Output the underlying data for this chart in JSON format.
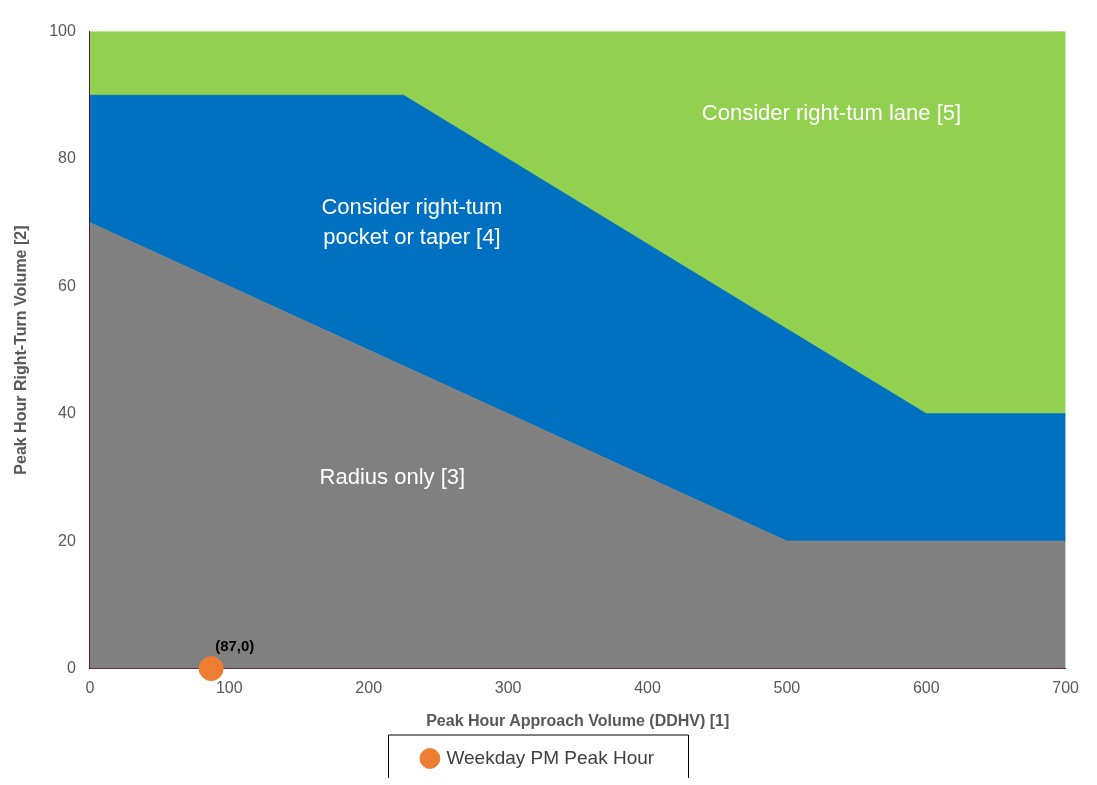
{
  "chart_data": {
    "type": "area",
    "xlabel": "Peak Hour Approach Volume (DDHV) [1]",
    "ylabel": "Peak Hour Right-Turn Volume [2]",
    "x": [
      0,
      225,
      500,
      600,
      700
    ],
    "stacked": true,
    "series": [
      {
        "name": "Radius only [3]",
        "color": "#808080",
        "values": [
          70,
          47.5,
          20,
          20,
          20
        ]
      },
      {
        "name": "Consider right-tum pocket or taper [4]",
        "color": "#0070c0",
        "values": [
          20,
          42.5,
          33.3,
          20,
          20
        ]
      },
      {
        "name": "Consider right-tum lane [5]",
        "color": "#92d050",
        "values": [
          10,
          10,
          46.7,
          60,
          60
        ]
      },
      {
        "name": "Weekday PM Peak Hour",
        "type": "scatter",
        "color": "#ed7d31",
        "x": [
          87
        ],
        "values": [
          0
        ],
        "marker": "circle"
      }
    ],
    "xlim": [
      0,
      700
    ],
    "xticks": [
      0,
      100,
      200,
      300,
      400,
      500,
      600,
      700
    ],
    "ylim": [
      0,
      100
    ],
    "yticks": [
      0,
      20,
      40,
      60,
      80,
      100
    ],
    "annotations": [
      {
        "text": "(87,0)",
        "x": 87,
        "y": 0
      }
    ],
    "grid": false,
    "legend": "bottom"
  }
}
